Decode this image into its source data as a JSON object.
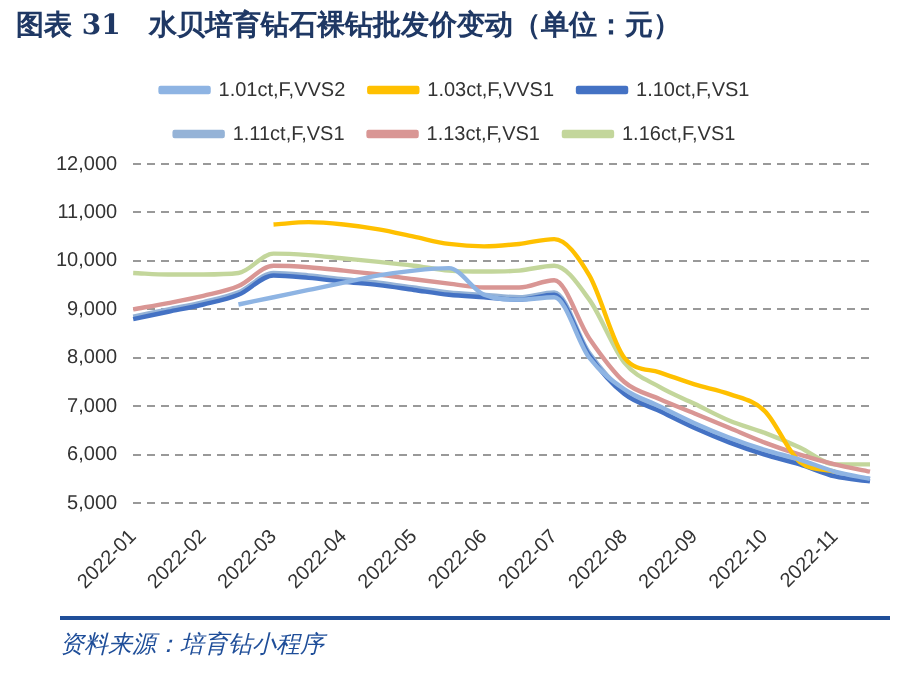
{
  "chart_data": {
    "type": "line",
    "title": "图表 31　水贝培育钻石裸钻批发价变动（单位：元）",
    "categories": [
      "2022-01",
      null,
      "2022-02",
      null,
      "2022-03",
      null,
      "2022-04",
      null,
      "2022-05",
      null,
      "2022-06",
      null,
      "2022-07",
      null,
      "2022-08",
      null,
      "2022-09",
      null,
      "2022-10",
      null,
      "2022-11",
      null
    ],
    "series": [
      {
        "name": "1.01ct,F,VVS2",
        "color": "#8eb4e3",
        "values": [
          null,
          null,
          null,
          9100,
          9250,
          9400,
          9550,
          9700,
          9800,
          9850,
          9300,
          9200,
          9250,
          8000,
          7350,
          7000,
          6650,
          6350,
          6100,
          5900,
          5650,
          5500
        ]
      },
      {
        "name": "1.03ct,F,VVS1",
        "color": "#ffc000",
        "values": [
          null,
          null,
          null,
          null,
          10750,
          10800,
          10750,
          10650,
          10500,
          10350,
          10300,
          10350,
          10450,
          9700,
          8000,
          7700,
          7450,
          7250,
          6900,
          5850,
          5650,
          null
        ]
      },
      {
        "name": "1.10ct,F,VS1",
        "color": "#4472c4",
        "values": [
          8800,
          8950,
          9100,
          9300,
          9700,
          9650,
          9570,
          9500,
          9400,
          9300,
          9250,
          9200,
          9300,
          8050,
          7250,
          6900,
          6550,
          6250,
          6000,
          5800,
          5550,
          5450
        ]
      },
      {
        "name": "1.11ct,F,VS1",
        "color": "#95b3d7",
        "values": [
          8850,
          9000,
          9150,
          9350,
          9750,
          9700,
          9620,
          9550,
          9450,
          9350,
          9300,
          9250,
          9350,
          8100,
          7300,
          6950,
          6600,
          6300,
          6050,
          5850,
          5600,
          5500
        ]
      },
      {
        "name": "1.13ct,F,VS1",
        "color": "#d99694",
        "values": [
          9000,
          9130,
          9280,
          9480,
          9900,
          9870,
          9800,
          9720,
          9620,
          9530,
          9450,
          9450,
          9600,
          8400,
          7500,
          7150,
          6850,
          6550,
          6250,
          6000,
          5800,
          5650
        ]
      },
      {
        "name": "1.16ct,F,VS1",
        "color": "#c3d69b",
        "values": [
          9750,
          9720,
          9720,
          9750,
          10150,
          10120,
          10050,
          9980,
          9900,
          9800,
          9780,
          9800,
          9900,
          9200,
          7900,
          7400,
          7050,
          6700,
          6450,
          6150,
          5800,
          5800
        ]
      }
    ],
    "ylim": [
      5000,
      12000
    ],
    "yticks": [
      {
        "value": 5000,
        "label": "5,000"
      },
      {
        "value": 6000,
        "label": "6,000"
      },
      {
        "value": 7000,
        "label": "7,000"
      },
      {
        "value": 8000,
        "label": "8,000"
      },
      {
        "value": 9000,
        "label": "9,000"
      },
      {
        "value": 10000,
        "label": "10,000"
      },
      {
        "value": 11000,
        "label": "11,000"
      },
      {
        "value": 12000,
        "label": "12,000"
      }
    ],
    "grid": "y",
    "legend": "top",
    "marker": "none",
    "line_style": "solid",
    "annotations": [
      "资料来源：培育钻小程序"
    ]
  }
}
